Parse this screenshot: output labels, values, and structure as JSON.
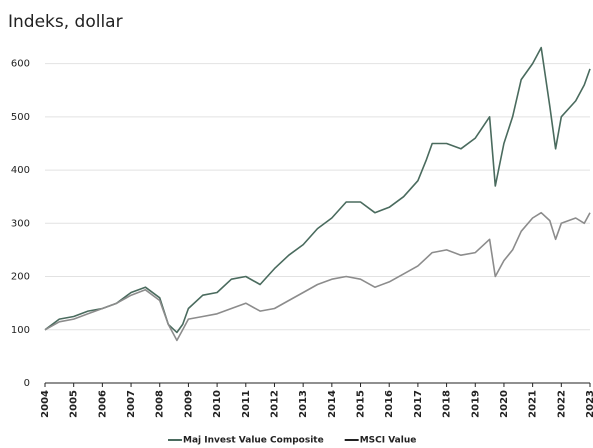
{
  "chart_data": {
    "type": "line",
    "title": "Indeks, dollar",
    "x": [
      2004,
      2004.5,
      2005,
      2005.5,
      2006,
      2006.5,
      2007,
      2007.5,
      2008,
      2008.3,
      2008.6,
      2008.8,
      2009,
      2009.5,
      2010,
      2010.5,
      2011,
      2011.5,
      2012,
      2012.5,
      2013,
      2013.5,
      2014,
      2014.5,
      2015,
      2015.5,
      2016,
      2016.5,
      2017,
      2017.3,
      2017.5,
      2018,
      2018.5,
      2019,
      2019.5,
      2019.7,
      2020,
      2020.3,
      2020.6,
      2021,
      2021.3,
      2021.6,
      2021.8,
      2022,
      2022.5,
      2022.8,
      2023
    ],
    "series": [
      {
        "name": "Maj Invest Value Composite",
        "color": "#4a6b5e",
        "values": [
          100,
          120,
          125,
          135,
          140,
          150,
          170,
          180,
          160,
          110,
          95,
          110,
          140,
          165,
          170,
          195,
          200,
          185,
          215,
          240,
          260,
          290,
          310,
          340,
          340,
          320,
          330,
          350,
          380,
          420,
          450,
          450,
          440,
          460,
          500,
          370,
          450,
          500,
          570,
          600,
          630,
          520,
          440,
          500,
          530,
          560,
          590
        ]
      },
      {
        "name": "MSCI Value",
        "color": "#8c8c8c",
        "values": [
          100,
          115,
          120,
          130,
          140,
          150,
          165,
          175,
          155,
          110,
          80,
          100,
          120,
          125,
          130,
          140,
          150,
          135,
          140,
          155,
          170,
          185,
          195,
          200,
          195,
          180,
          190,
          205,
          220,
          235,
          245,
          250,
          240,
          245,
          270,
          200,
          230,
          250,
          285,
          310,
          320,
          305,
          270,
          300,
          310,
          300,
          320
        ]
      }
    ],
    "xlim": [
      2004,
      2023
    ],
    "xticks": [
      2004,
      2005,
      2006,
      2007,
      2008,
      2009,
      2010,
      2011,
      2012,
      2013,
      2014,
      2015,
      2016,
      2017,
      2018,
      2019,
      2020,
      2021,
      2022,
      2023
    ],
    "ylim": [
      0,
      650
    ],
    "yticks": [
      0,
      100,
      200,
      300,
      400,
      500,
      600
    ],
    "grid": true
  }
}
